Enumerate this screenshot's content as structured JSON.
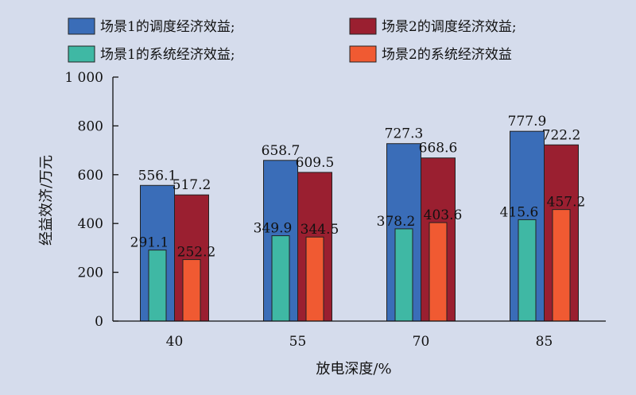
{
  "chart_data": {
    "type": "bar",
    "xlabel": "放电深度/%",
    "ylabel": "经益效济/万元",
    "categories": [
      "40",
      "55",
      "70",
      "85"
    ],
    "ylim": [
      0,
      1000
    ],
    "yticks": [
      0,
      200,
      400,
      600,
      800,
      1000
    ],
    "ytick_labels": [
      "0",
      "200",
      "400",
      "600",
      "800",
      "1 000"
    ],
    "grid": false,
    "legend_position": "top",
    "series": [
      {
        "name": "场景1的调度经济效益;",
        "color": "#3a6db8",
        "values": [
          556.1,
          658.7,
          727.3,
          777.9
        ],
        "labels": [
          "556.1",
          "658.7",
          "727.3",
          "777.9"
        ],
        "style": "wide"
      },
      {
        "name": "场景2的调度经济效益;",
        "color": "#9a1f30",
        "values": [
          517.2,
          609.5,
          668.6,
          722.2
        ],
        "labels": [
          "517.2",
          "609.5",
          "668.6",
          "722.2"
        ],
        "style": "wide"
      },
      {
        "name": "场景1的系统经济效益;",
        "color": "#3fb8a4",
        "values": [
          291.1,
          349.9,
          378.2,
          415.6
        ],
        "labels": [
          "291.1",
          "349.9",
          "378.2",
          "415.6"
        ],
        "style": "narrow"
      },
      {
        "name": "场景2的系统经济效益",
        "color": "#f05a32",
        "values": [
          252.2,
          344.5,
          403.6,
          457.2
        ],
        "labels": [
          "252.2",
          "344.5",
          "403.6",
          "457.2"
        ],
        "style": "narrow"
      }
    ]
  }
}
